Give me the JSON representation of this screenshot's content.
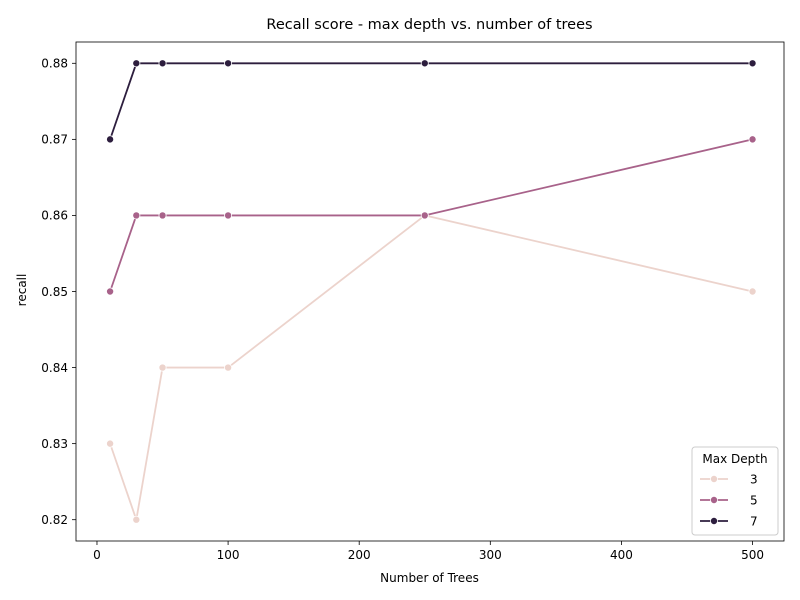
{
  "chart_data": {
    "type": "line",
    "title": "Recall score - max depth vs. number of trees",
    "xlabel": "Number of Trees",
    "ylabel": "recall",
    "xlim": [
      -16,
      524
    ],
    "ylim": [
      0.8172,
      0.8828
    ],
    "x_ticks": [
      0,
      100,
      200,
      300,
      400,
      500
    ],
    "x_tick_labels": [
      "0",
      "100",
      "200",
      "300",
      "400",
      "500"
    ],
    "y_ticks": [
      0.82,
      0.83,
      0.84,
      0.85,
      0.86,
      0.87,
      0.88
    ],
    "y_tick_labels": [
      "0.82",
      "0.83",
      "0.84",
      "0.85",
      "0.86",
      "0.87",
      "0.88"
    ],
    "x": [
      10,
      30,
      50,
      100,
      250,
      500
    ],
    "series": [
      {
        "name": "3",
        "color": "#ecd3cc",
        "values": [
          0.83,
          0.82,
          0.84,
          0.84,
          0.86,
          0.85
        ]
      },
      {
        "name": "5",
        "color": "#a8628a",
        "values": [
          0.85,
          0.86,
          0.86,
          0.86,
          0.86,
          0.87
        ]
      },
      {
        "name": "7",
        "color": "#2d1e3e",
        "values": [
          0.87,
          0.88,
          0.88,
          0.88,
          0.88,
          0.88
        ]
      }
    ],
    "legend": {
      "title": "Max Depth",
      "position": "lower-right"
    },
    "grid": false
  }
}
